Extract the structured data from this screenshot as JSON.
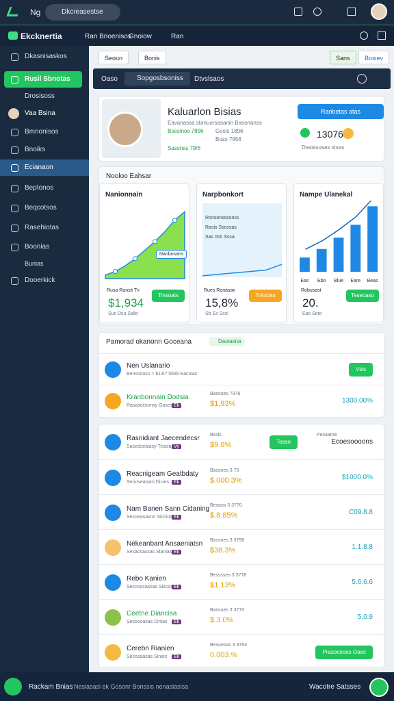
{
  "topbar": {
    "brand": "Ng",
    "search": "Dkcreasestse"
  },
  "navbar": {
    "brand": "Ekcknertia",
    "links": [
      "Ran Bnoenisos",
      "Gnoiow"
    ],
    "extra": "Ran"
  },
  "sidebar": {
    "items": [
      "Dkasnisaskos",
      "Rusil Sbnotas",
      "Drosisoss",
      "Vaa Bsina",
      "Bmnonisos",
      "Bnoiks",
      "Ecianaon",
      "Beptonos",
      "Beqcotsos",
      "Rasehiotas",
      "Boonias",
      "Bunias",
      "Dooerkick"
    ]
  },
  "filters": {
    "left": [
      "Seoun",
      "Bonis"
    ],
    "right": [
      "Sans",
      "Bosiev"
    ]
  },
  "toolbar": {
    "items": [
      "Oaso",
      "Sopgosbsoniss",
      "Dtvslsaos"
    ]
  },
  "profile": {
    "name": "Kaluarlon Bisias",
    "line": "Eavanassa stanuorsasanin Basonanss",
    "stats": [
      "Bsesinos 7896",
      "Gosls 1896",
      "Boss 7956",
      "Sassnss 79/6"
    ],
    "button": "Ranbetas atas",
    "value": "13076",
    "caption": "Dasiasosas stsas"
  },
  "section": {
    "title": "Nooloo Eahsar"
  },
  "cards": [
    {
      "title": "Nanionnain",
      "label": "Rusa Ronsit Tri",
      "value": "$1,934",
      "foot": "Sus Dsu Ssllo",
      "button": "Tinsoats",
      "tag": "Nanbosans",
      "chart": {
        "type": "area",
        "color": "#8be04e",
        "values": [
          5,
          10,
          18,
          28,
          40,
          52,
          66,
          82,
          94
        ]
      }
    },
    {
      "title": "Narpbonkort",
      "label": "Rues Ronasan",
      "value": "15,8%",
      "foot": "Sb Es Scsi",
      "button": "Tolocias",
      "legend": [
        "Ronsonsssonss",
        "Rasis Ssossas",
        "Sas 0s0 Sssa"
      ],
      "chart": {
        "type": "line",
        "color": "#1e88e5",
        "values": [
          4,
          6,
          8,
          10,
          12,
          20
        ]
      }
    },
    {
      "title": "Nampe Ulanekal",
      "label": "Robusast",
      "value": "20.",
      "foot": "Eas Seto",
      "button": "Tesecaso",
      "chart": {
        "type": "bar",
        "color": "#1e88e5",
        "categories": [
          "Eas",
          "Ebo",
          "Blue",
          "Eare",
          "Beas"
        ],
        "values": [
          20,
          32,
          48,
          66,
          92
        ]
      }
    }
  ],
  "lists": [
    {
      "title": "Pamorad okanonn Goceana",
      "badge": "Dasiasna",
      "rows": [
        {
          "title": "Nen Uslanario",
          "sub": "Benssooss > $13i7 5i9/8 Eacnias",
          "button": "Vsis",
          "icon": "#1e88e5"
        },
        {
          "title": "Kranbonnain Dodsia",
          "sub": "Rasascitsonsy Gasesas",
          "tag": "Ek",
          "mid": "Bassoes 7976",
          "midval": "$1,93%",
          "right": "1300.00%",
          "icon": "#f5a623",
          "titlecolor": "#1e9e4a"
        }
      ]
    },
    {
      "rows": [
        {
          "title": "Rasnidiant Jaecendecsr",
          "sub": "Sasedseaiasy Tisssa",
          "tag": "Vy",
          "mid": "Bssis",
          "midval": "$9.6%",
          "right": "Ecoesoooons",
          "top": "Pesaatne",
          "button": "Tosso",
          "icon": "#1e88e5"
        },
        {
          "title": "Reacnigeam Geatbdaty",
          "sub": "Senoseasam Dicies",
          "tag": "Ek",
          "mid": "Bassoes 3 70",
          "midval": "$.000.3%",
          "right": "$1000.0%",
          "icon": "#1e88e5"
        },
        {
          "title": "Nam Banen Sann Cidaning",
          "sub": "Sesneasasnn Sicnios",
          "tag": "Ek",
          "mid": "Besaos 3 3770",
          "midval": "$.8.85%",
          "right": "C09.8.8",
          "icon": "#1e88e5"
        },
        {
          "title": "Nekeanbant Ansaeniatsn",
          "sub": "Sesacsassas Slanias",
          "tag": "Ek",
          "mid": "Bassoes 3 3798",
          "midval": "$38.3%",
          "right": "1.1.8.8",
          "icon": "#f6c26b"
        },
        {
          "title": "Rebo Kanien",
          "sub": "Sesnsocassas Siscos",
          "tag": "Ek",
          "mid": "Besssses 3 3778",
          "midval": "$1.13%",
          "right": "5.6.6.6",
          "icon": "#1e88e5"
        },
        {
          "title": "Ceetne Diancisa",
          "sub": "Sesoosasas Dinias",
          "tag": "Ek",
          "mid": "Bassoes 3 3770",
          "midval": "$.3.0%",
          "right": "5.0.9",
          "icon": "#8bc34a",
          "titlecolor": "#1e9e4a"
        },
        {
          "title": "Cerebn Rianien",
          "sub": "Sesosaasas Sinios",
          "tag": "Ek",
          "mid": "Besoesas 3 3794",
          "midval": "0.003.%",
          "button": "Prasocooes Oaec",
          "icon": "#f5b942"
        }
      ]
    }
  ],
  "footer": {
    "brand": "Rackam Bnias",
    "search": "Nesiasasi ek Gosonr Bonssis nenaslaslsa",
    "right": "Wacotre Satsses"
  }
}
